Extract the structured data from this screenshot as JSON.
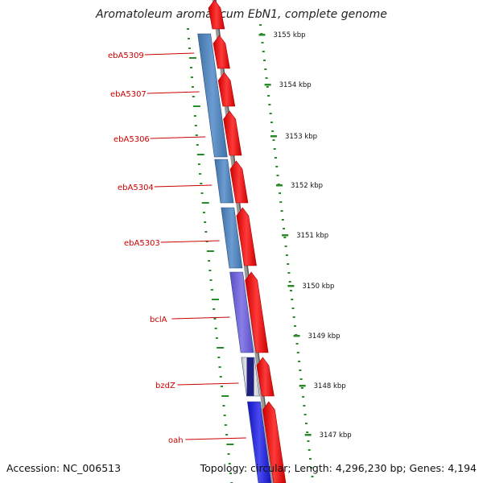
{
  "title": "Aromatoleum aromaticum EbN1, complete genome",
  "footer": {
    "accession": "Accession: NC_006513",
    "summary": "Topology: circular; Length: 4,296,230 bp; Genes: 4,194"
  },
  "colors": {
    "forward_gene": "#ee1111",
    "reverse_gene_blue": "#4a7fb5",
    "reverse_gene_purple": "#6b5cd6",
    "reverse_gene_darkblue": "#1f1fd6",
    "tick_green": "#2a8a2a",
    "label_red": "#cc0000",
    "backbone_gray": "#888888"
  },
  "kbp_ticks": [
    "3155 kbp",
    "3154 kbp",
    "3153 kbp",
    "3152 kbp",
    "3151 kbp",
    "3150 kbp",
    "3149 kbp",
    "3148 kbp",
    "3147 kbp"
  ],
  "reverse_genes": [
    {
      "name": "ebA5309",
      "color": "blue"
    },
    {
      "name": "ebA5307",
      "color": "blue"
    },
    {
      "name": "ebA5306",
      "color": "blue"
    },
    {
      "name": "ebA5304",
      "color": "blue"
    },
    {
      "name": "ebA5303",
      "color": "blue"
    },
    {
      "name": "bclA",
      "color": "purple"
    },
    {
      "name": "bzdZ",
      "color": "striped"
    },
    {
      "name": "oah",
      "color": "darkblue"
    }
  ]
}
